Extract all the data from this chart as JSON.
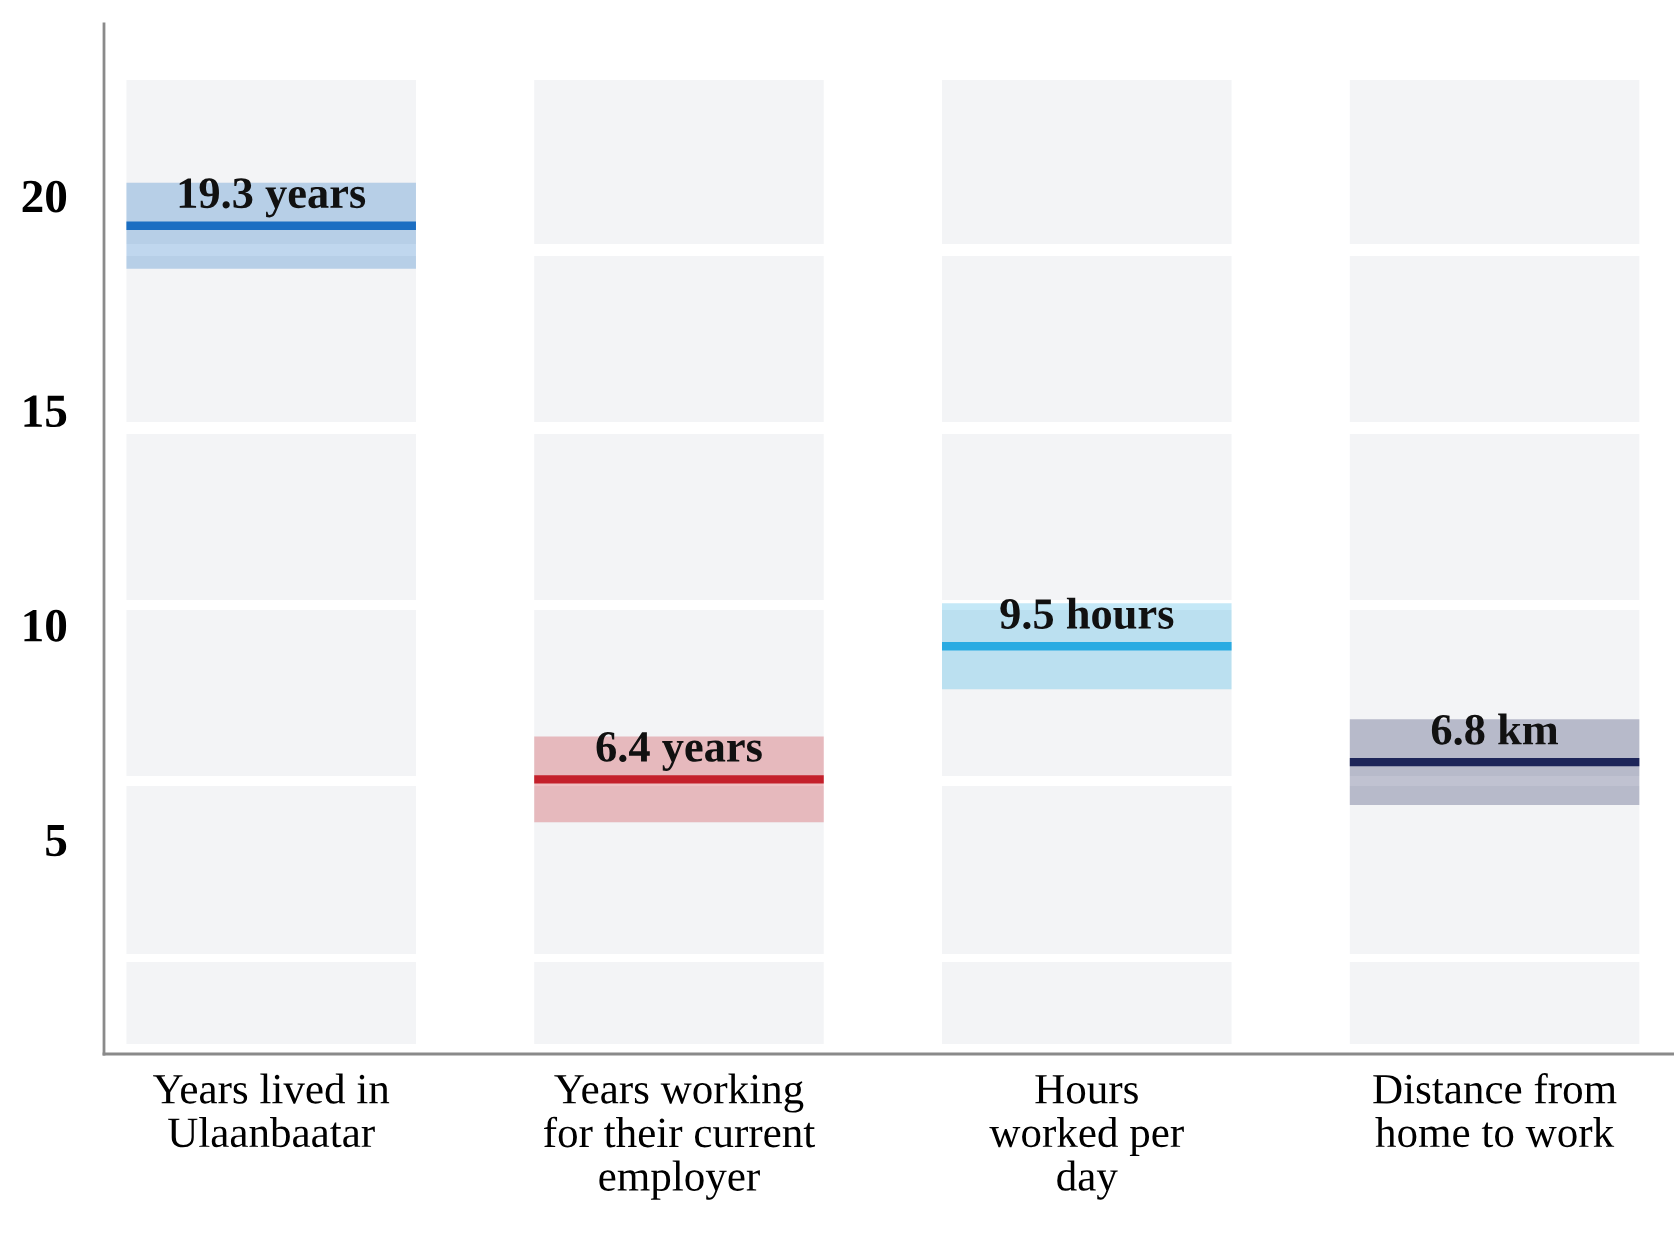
{
  "chart_data": {
    "type": "box",
    "categories": [
      "Years lived in\nUlaanbaatar",
      "Years working\nfor their current\nemployer",
      "Hours\nworked per\nday",
      "Distance from\nhome to work"
    ],
    "boxes": [
      {
        "low": 18.3,
        "q1": 18.3,
        "median": 19.3,
        "q3": 20.3,
        "high": 20.3
      },
      {
        "low": 5.4,
        "q1": 5.4,
        "median": 6.4,
        "q3": 7.4,
        "high": 7.4
      },
      {
        "low": 8.5,
        "q1": 8.5,
        "median": 9.5,
        "q3": 10.5,
        "high": 10.5
      },
      {
        "low": 5.8,
        "q1": 5.8,
        "median": 6.8,
        "q3": 7.8,
        "high": 7.8
      }
    ],
    "colors": [
      "#1b6ec2",
      "#c4202b",
      "#2aabe2",
      "#1d2559"
    ],
    "annotations": [
      {
        "text": "19.3 years",
        "x": "Years lived in\nUlaanbaatar",
        "y": 19.3
      },
      {
        "text": "6.4 years",
        "x": "Years working\nfor their current\nemployer",
        "y": 6.4
      },
      {
        "text": "9.5 hours",
        "x": "Hours\nworked per\nday",
        "y": 9.5
      },
      {
        "text": "6.8 km",
        "x": "Distance from\nhome to work",
        "y": 6.8
      }
    ],
    "ylim": [
      0,
      24
    ],
    "yticks": [
      5,
      10,
      15,
      20
    ]
  }
}
